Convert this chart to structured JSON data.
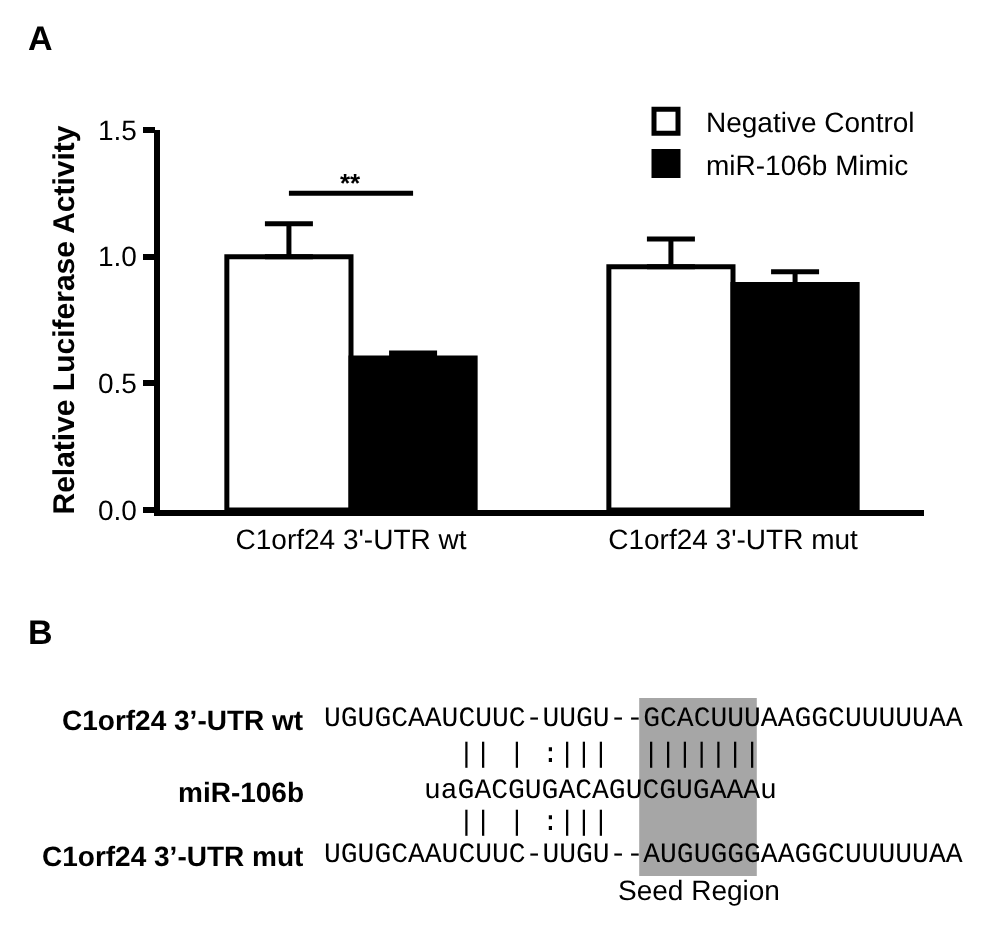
{
  "chart_data": [
    {
      "type": "bar",
      "ylabel": "Relative Luciferase Activity",
      "categories": [
        "C1orf24 3'-UTR wt",
        "C1orf24 3'-UTR mut"
      ],
      "series": [
        {
          "name": "Negative Control",
          "color": "#ffffff",
          "values": [
            1.0,
            0.96
          ],
          "errors": [
            [
              1.0,
              1.13
            ],
            [
              0.96,
              1.07
            ]
          ]
        },
        {
          "name": "miR-106b Mimic",
          "color": "#000000",
          "values": [
            0.6,
            0.89
          ],
          "errors": [
            [
              0.6,
              0.62
            ],
            [
              0.89,
              0.94
            ]
          ]
        }
      ],
      "ylim": [
        0,
        1.5
      ],
      "yticks": [
        {
          "value": 0,
          "label": "0.0"
        },
        {
          "value": 0.5,
          "label": "0.5"
        },
        {
          "value": 1,
          "label": "1.0"
        },
        {
          "value": 1.5,
          "label": "1.5"
        }
      ],
      "legend": "top right",
      "annotations": [
        "A",
        "**"
      ]
    },
    {
      "type": "other",
      "annotations": [
        "B",
        "C1orf24 3’-UTR wt",
        "UGUGCAAUCUUC-UUGU--GCACUUUAAGGCUUUUUAA",
        "|| | :|||  |||||||",
        "miR-106b",
        "uaGACGUGACAGUCGUGAAAu",
        "|| | :|||",
        "C1orf24 3’-UTR mut",
        "UGUGCAAUCUUC-UUGU--AUGUGGGAAGGCUUUUUAA",
        "Seed Region"
      ]
    }
  ]
}
